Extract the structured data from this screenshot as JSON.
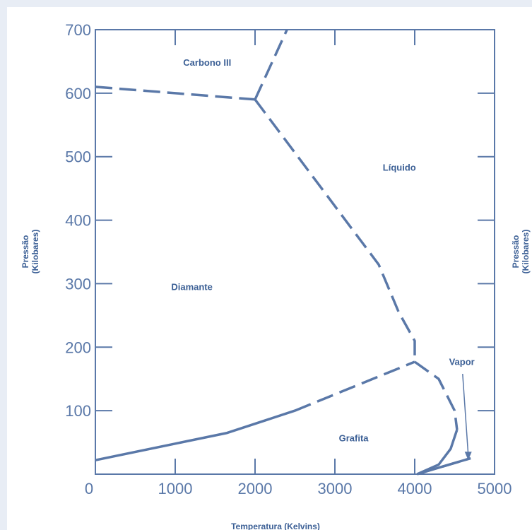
{
  "chart_data": {
    "type": "line",
    "xlabel": "Temperatura (Kelvins)",
    "ylabel_line1": "Pressão",
    "ylabel_line2": "(Kilobares)",
    "right_label_line1": "Pressão",
    "right_label_line2": "(Kilobares)",
    "xlim": [
      0,
      5000
    ],
    "ylim": [
      0,
      700
    ],
    "x_ticks": [
      "0",
      "1000",
      "2000",
      "3000",
      "4000",
      "5000"
    ],
    "y_ticks": [
      "100",
      "200",
      "300",
      "400",
      "500",
      "600",
      "700"
    ],
    "x_tick_values": [
      0,
      1000,
      2000,
      3000,
      4000,
      5000
    ],
    "y_tick_values": [
      100,
      200,
      300,
      400,
      500,
      600,
      700
    ],
    "grid": false,
    "color": "#5a78a8",
    "region_labels": {
      "carbono": "Carbono III",
      "liquido": "Líquido",
      "diamante": "Diamante",
      "grafita": "Grafita",
      "vapor": "Vapor"
    },
    "series": [
      {
        "style": "dashed",
        "x": [
          0,
          2000
        ],
        "y": [
          610,
          590
        ]
      },
      {
        "style": "dashed",
        "x": [
          2000,
          2400
        ],
        "y": [
          590,
          700
        ]
      },
      {
        "style": "dashed",
        "x": [
          2000,
          3550,
          3800,
          4000,
          4000
        ],
        "y": [
          590,
          330,
          255,
          210,
          177
        ]
      },
      {
        "style": "solid",
        "x": [
          0,
          1650,
          2500
        ],
        "y": [
          22,
          65,
          100
        ]
      },
      {
        "style": "dashed",
        "x": [
          2500,
          4000
        ],
        "y": [
          100,
          177
        ]
      },
      {
        "style": "dashed",
        "x": [
          4000,
          4300,
          4500,
          4530
        ],
        "y": [
          177,
          150,
          100,
          70
        ]
      },
      {
        "style": "solid",
        "x": [
          4530,
          4450,
          4300,
          4030
        ],
        "y": [
          70,
          40,
          15,
          0
        ]
      },
      {
        "style": "solid",
        "x": [
          4030,
          4350,
          4700
        ],
        "y": [
          0,
          12,
          25
        ]
      },
      {
        "style": "dashed",
        "x": [
          4350,
          4700
        ],
        "y": [
          12,
          25
        ]
      }
    ]
  }
}
